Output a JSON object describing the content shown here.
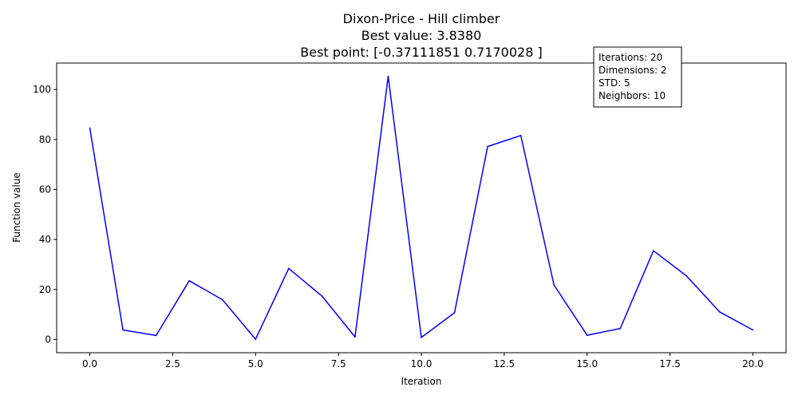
{
  "chart_data": {
    "type": "line",
    "title_lines": [
      "Dixon-Price - Hill climber",
      "Best value: 3.8380",
      "Best point: [-0.37111851  0.7170028 ]"
    ],
    "xlabel": "Iteration",
    "ylabel": "Function value",
    "xlim": [
      -1.0,
      21.0
    ],
    "ylim": [
      -5.3,
      110.6
    ],
    "xticks": [
      0.0,
      2.5,
      5.0,
      7.5,
      10.0,
      12.5,
      15.0,
      17.5,
      20.0
    ],
    "xtick_labels": [
      "0.0",
      "2.5",
      "5.0",
      "7.5",
      "10.0",
      "12.5",
      "15.0",
      "17.5",
      "20.0"
    ],
    "yticks": [
      0,
      20,
      40,
      60,
      80,
      100
    ],
    "ytick_labels": [
      "0",
      "20",
      "40",
      "60",
      "80",
      "100"
    ],
    "grid": false,
    "series": [
      {
        "color": "#0000ff",
        "x": [
          0,
          1,
          2,
          3,
          4,
          5,
          6,
          7,
          8,
          9,
          10,
          11,
          12,
          13,
          14,
          15,
          16,
          17,
          18,
          19,
          20
        ],
        "values": [
          84.6,
          3.8,
          1.6,
          23.5,
          15.9,
          0.1,
          28.4,
          17.4,
          1.0,
          105.3,
          0.8,
          10.7,
          77.2,
          81.6,
          21.8,
          1.7,
          4.4,
          35.5,
          25.4,
          11.0,
          3.8
        ]
      }
    ],
    "info_box": {
      "placement": "top-right",
      "lines": [
        "Iterations: 20",
        "Dimensions: 2",
        "STD: 5",
        "Neighbors: 10"
      ]
    }
  }
}
